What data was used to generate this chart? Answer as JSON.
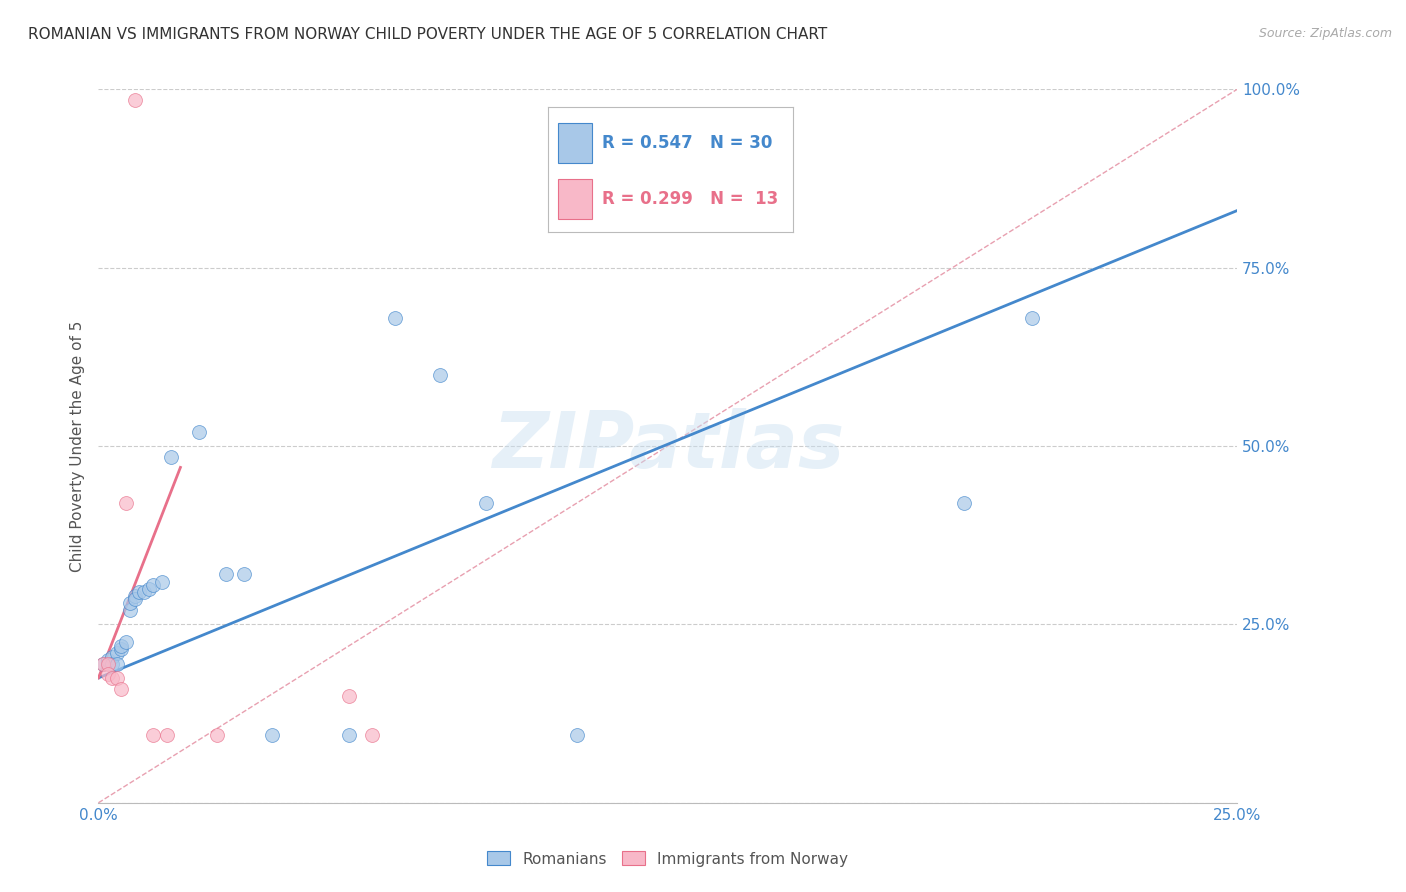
{
  "title": "ROMANIAN VS IMMIGRANTS FROM NORWAY CHILD POVERTY UNDER THE AGE OF 5 CORRELATION CHART",
  "source": "Source: ZipAtlas.com",
  "ylabel": "Child Poverty Under the Age of 5",
  "xlim": [
    0,
    0.25
  ],
  "ylim": [
    0,
    1.0
  ],
  "blue_R": 0.547,
  "blue_N": 30,
  "pink_R": 0.299,
  "pink_N": 13,
  "blue_color": "#a8c8e8",
  "pink_color": "#f8b8c8",
  "blue_line_color": "#4488cc",
  "pink_line_color": "#e8708a",
  "diag_color": "#e8a0b0",
  "watermark": "ZIPatlas",
  "blue_points": [
    [
      0.001,
      0.195
    ],
    [
      0.002,
      0.2
    ],
    [
      0.003,
      0.205
    ],
    [
      0.003,
      0.195
    ],
    [
      0.004,
      0.21
    ],
    [
      0.004,
      0.195
    ],
    [
      0.005,
      0.215
    ],
    [
      0.005,
      0.22
    ],
    [
      0.006,
      0.225
    ],
    [
      0.007,
      0.27
    ],
    [
      0.007,
      0.28
    ],
    [
      0.008,
      0.29
    ],
    [
      0.008,
      0.285
    ],
    [
      0.009,
      0.295
    ],
    [
      0.01,
      0.295
    ],
    [
      0.011,
      0.3
    ],
    [
      0.012,
      0.305
    ],
    [
      0.014,
      0.31
    ],
    [
      0.016,
      0.485
    ],
    [
      0.022,
      0.52
    ],
    [
      0.028,
      0.32
    ],
    [
      0.032,
      0.32
    ],
    [
      0.038,
      0.095
    ],
    [
      0.055,
      0.095
    ],
    [
      0.065,
      0.68
    ],
    [
      0.075,
      0.6
    ],
    [
      0.085,
      0.42
    ],
    [
      0.105,
      0.095
    ],
    [
      0.19,
      0.42
    ],
    [
      0.205,
      0.68
    ]
  ],
  "pink_points": [
    [
      0.001,
      0.195
    ],
    [
      0.002,
      0.195
    ],
    [
      0.002,
      0.18
    ],
    [
      0.003,
      0.175
    ],
    [
      0.004,
      0.175
    ],
    [
      0.005,
      0.16
    ],
    [
      0.006,
      0.42
    ],
    [
      0.008,
      0.985
    ],
    [
      0.012,
      0.095
    ],
    [
      0.015,
      0.095
    ],
    [
      0.026,
      0.095
    ],
    [
      0.055,
      0.15
    ],
    [
      0.06,
      0.095
    ]
  ],
  "blue_line": [
    [
      0.0,
      0.175
    ],
    [
      0.25,
      0.83
    ]
  ],
  "pink_line": [
    [
      0.0,
      0.175
    ],
    [
      0.018,
      0.47
    ]
  ],
  "diag_line": [
    [
      0.0,
      0.0
    ],
    [
      0.25,
      1.0
    ]
  ]
}
